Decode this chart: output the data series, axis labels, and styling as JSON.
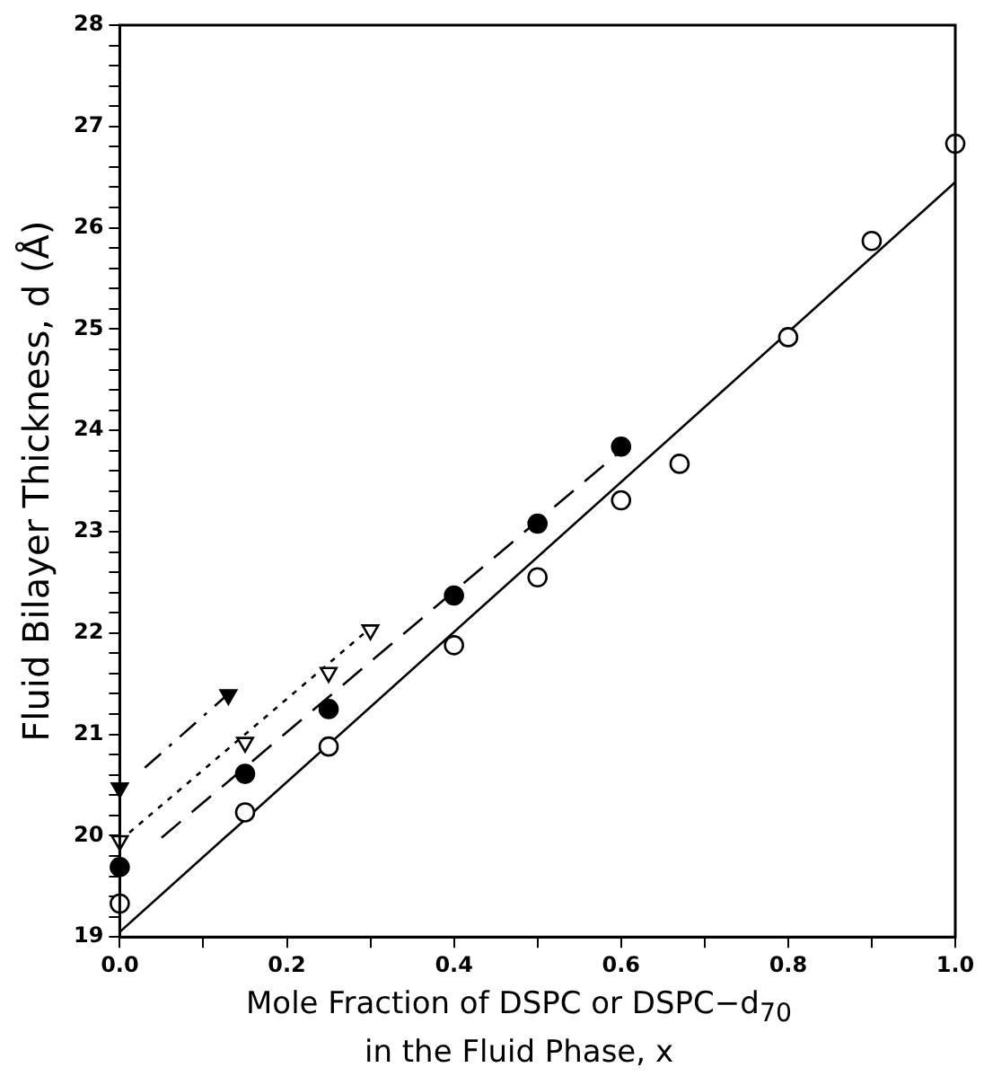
{
  "chart_data": {
    "type": "scatter",
    "xlabel": "Mole Fraction of DSPC or DSPC−d$_{70}$\nin the Fluid Phase, x",
    "ylabel": "Fluid Bilayer Thickness, d (Å)",
    "xlim": [
      0,
      1.0
    ],
    "ylim": [
      19,
      28
    ],
    "xticks": [
      {
        "value": 0,
        "label": "0.0"
      },
      {
        "value": 0.1,
        "label": null
      },
      {
        "value": 0.2,
        "label": "0.2"
      },
      {
        "value": 0.3,
        "label": null
      },
      {
        "value": 0.4,
        "label": "0.4"
      },
      {
        "value": 0.5,
        "label": null
      },
      {
        "value": 0.6,
        "label": "0.6"
      },
      {
        "value": 0.7,
        "label": null
      },
      {
        "value": 0.8,
        "label": "0.8"
      },
      {
        "value": 0.9,
        "label": null
      },
      {
        "value": 1.0,
        "label": "1.0"
      }
    ],
    "yticks": [
      19,
      {
        "value": 19.2,
        "label": null
      },
      {
        "value": 19.4,
        "label": null
      },
      {
        "value": 19.6,
        "label": null
      },
      {
        "value": 19.8,
        "label": null
      },
      20,
      {
        "value": 20.2,
        "label": null
      },
      {
        "value": 20.4,
        "label": null
      },
      {
        "value": 20.6,
        "label": null
      },
      {
        "value": 20.8,
        "label": null
      },
      21,
      {
        "value": 21.2,
        "label": null
      },
      {
        "value": 21.4,
        "label": null
      },
      {
        "value": 21.6,
        "label": null
      },
      {
        "value": 21.8,
        "label": null
      },
      22,
      {
        "value": 22.2,
        "label": null
      },
      {
        "value": 22.4,
        "label": null
      },
      {
        "value": 22.6,
        "label": null
      },
      {
        "value": 22.8,
        "label": null
      },
      23,
      {
        "value": 23.2,
        "label": null
      },
      {
        "value": 23.4,
        "label": null
      },
      {
        "value": 23.6,
        "label": null
      },
      {
        "value": 23.8,
        "label": null
      },
      24,
      {
        "value": 24.2,
        "label": null
      },
      {
        "value": 24.4,
        "label": null
      },
      {
        "value": 24.6,
        "label": null
      },
      {
        "value": 24.8,
        "label": null
      },
      25,
      {
        "value": 25.2,
        "label": null
      },
      {
        "value": 25.4,
        "label": null
      },
      {
        "value": 25.6,
        "label": null
      },
      {
        "value": 25.8,
        "label": null
      },
      26,
      {
        "value": 26.2,
        "label": null
      },
      {
        "value": 26.4,
        "label": null
      },
      {
        "value": 26.6,
        "label": null
      },
      {
        "value": 26.8,
        "label": null
      },
      27,
      {
        "value": 27.2,
        "label": null
      },
      {
        "value": 27.4,
        "label": null
      },
      {
        "value": 27.6,
        "label": null
      },
      {
        "value": 27.8,
        "label": null
      },
      28
    ],
    "grid": false,
    "legend": false,
    "series": [
      {
        "marker": "circle",
        "color": "#ffffff",
        "x": [
          0,
          0.15,
          0.25,
          0.4,
          0.5,
          0.6,
          0.67,
          0.8,
          0.9,
          1.0
        ],
        "values": [
          19.33,
          20.23,
          20.88,
          21.88,
          22.55,
          23.31,
          23.67,
          24.92,
          25.87,
          26.83
        ]
      },
      {
        "marker": "circle",
        "color": "#000000",
        "x": [
          0,
          0.15,
          0.25,
          0.4,
          0.5,
          0.6
        ],
        "values": [
          19.69,
          20.61,
          21.25,
          22.37,
          23.08,
          23.84
        ]
      },
      {
        "marker": "triangle",
        "color": "#ffffff",
        "x": [
          0,
          0.15,
          0.25,
          0.3
        ],
        "values": [
          19.95,
          20.92,
          21.61,
          22.03
        ]
      },
      {
        "marker": "triangle",
        "color": "#000000",
        "x": [
          0,
          0.13
        ],
        "values": [
          20.47,
          21.39
        ]
      },
      {
        "type": "line",
        "marker": "none",
        "line_style": "solid",
        "color": "#000000",
        "x": [
          0,
          1.0
        ],
        "values": [
          19.05,
          26.45
        ]
      },
      {
        "type": "line",
        "marker": "none",
        "line_style": "dashed",
        "color": "#000000",
        "x": [
          0.05,
          0.6
        ],
        "values": [
          19.98,
          23.8
        ]
      },
      {
        "type": "line",
        "marker": "none",
        "line_style": "dotted",
        "color": "#000000",
        "x": [
          0,
          0.3
        ],
        "values": [
          19.95,
          22.05
        ]
      },
      {
        "type": "line",
        "marker": "none",
        "line_style": "dashdot",
        "color": "#000000",
        "x": [
          0.03,
          0.13
        ],
        "values": [
          20.67,
          21.4
        ]
      }
    ]
  }
}
